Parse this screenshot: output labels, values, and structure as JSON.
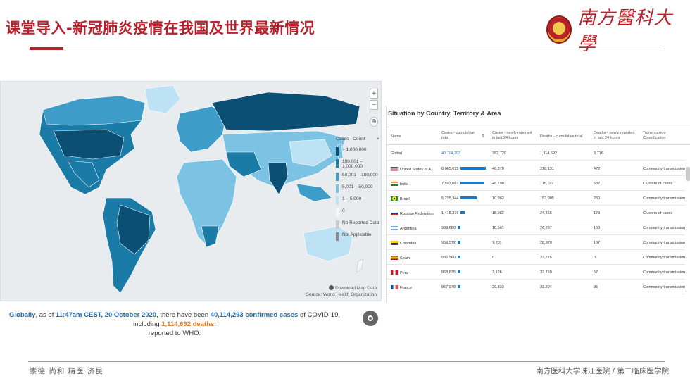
{
  "slide": {
    "title": "课堂导入-新冠肺炎疫情在我国及世界最新情况",
    "logo_text": "南方醫科大學"
  },
  "map": {
    "controls": [
      "+",
      "−",
      "⊕"
    ],
    "legend_title": "Cases - Count",
    "legend_close": "×",
    "legend": [
      {
        "label": "> 1,000,000",
        "color": "#0b4f75"
      },
      {
        "label": "100,001 – 1,000,000",
        "color": "#1a7ba7"
      },
      {
        "label": "50,001 – 100,000",
        "color": "#3e9cc8"
      },
      {
        "label": "5,001 – 50,000",
        "color": "#7cc2e3"
      },
      {
        "label": "1 – 5,000",
        "color": "#bde2f3"
      },
      {
        "label": "0",
        "color": "#f2f7fa"
      },
      {
        "label": "No Reported Data",
        "color": "#c9c9c9"
      },
      {
        "label": "Not Applicable",
        "color": "#8c8c8c"
      }
    ],
    "download_label": "Download Map Data",
    "source_label": "Source: World Health Organization"
  },
  "caption": {
    "lead": "Globally",
    "part1": ", as of ",
    "timestamp": "11:47am CEST, 20 October 2020",
    "part2": ", there have been ",
    "cases": "40,114,293 confirmed cases",
    "part3": " of COVID-19, including ",
    "deaths": "1,114,692 deaths",
    "part4": ",",
    "part5": "reported to WHO."
  },
  "table": {
    "title": "Situation by Country, Territory & Area",
    "headers": {
      "name": "Name",
      "cases_total": "Cases - cumulative total",
      "sort": "⇅",
      "cases_24h": "Cases - newly reported in last 24 hours",
      "deaths_total": "Deaths - cumulative total",
      "deaths_24h": "Deaths - newly reported in last 24 hours",
      "transmission": "Transmission Classification"
    },
    "global": {
      "name": "Global",
      "cases_total": "40,114,293",
      "cases_24h": "382,729",
      "deaths_total": "1,114,692",
      "deaths_24h": "3,716"
    },
    "rows": [
      {
        "name": "United States of A...",
        "flag": "us",
        "cases_total": "8,065,615",
        "bar": 1.0,
        "cases_24h": "46,378",
        "deaths_total": "218,131",
        "deaths_24h": "472",
        "transmission": "Community transmission"
      },
      {
        "name": "India",
        "flag": "in",
        "cases_total": "7,597,063",
        "bar": 0.94,
        "cases_24h": "46,790",
        "deaths_total": "115,197",
        "deaths_24h": "587",
        "transmission": "Clusters of cases"
      },
      {
        "name": "Brazil",
        "flag": "br",
        "cases_total": "5,235,344",
        "bar": 0.65,
        "cases_24h": "10,982",
        "deaths_total": "153,905",
        "deaths_24h": "230",
        "transmission": "Community transmission"
      },
      {
        "name": "Russian Federation",
        "flag": "ru",
        "cases_total": "1,415,316",
        "bar": 0.18,
        "cases_24h": "15,982",
        "deaths_total": "24,366",
        "deaths_24h": "179",
        "transmission": "Clusters of cases"
      },
      {
        "name": "Argentina",
        "flag": "ar",
        "cases_total": "989,680",
        "bar": 0.12,
        "cases_24h": "10,561",
        "deaths_total": "26,267",
        "deaths_24h": "160",
        "transmission": "Community transmission"
      },
      {
        "name": "Colombia",
        "flag": "co",
        "cases_total": "959,572",
        "bar": 0.12,
        "cases_24h": "7,201",
        "deaths_total": "28,970",
        "deaths_24h": "167",
        "transmission": "Community transmission"
      },
      {
        "name": "Spain",
        "flag": "es",
        "cases_total": "936,560",
        "bar": 0.12,
        "cases_24h": "0",
        "deaths_total": "33,775",
        "deaths_24h": "0",
        "transmission": "Community transmission"
      },
      {
        "name": "Peru",
        "flag": "pe",
        "cases_total": "868,675",
        "bar": 0.11,
        "cases_24h": "3,126",
        "deaths_total": "33,759",
        "deaths_24h": "57",
        "transmission": "Community transmission"
      },
      {
        "name": "France",
        "flag": "fr",
        "cases_total": "867,978",
        "bar": 0.11,
        "cases_24h": "29,833",
        "deaths_total": "33,204",
        "deaths_24h": "85",
        "transmission": "Community transmission"
      }
    ]
  },
  "footer": {
    "left": "崇德  尚和  精医  济民",
    "right": "南方医科大学珠江医院 / 第二临床医学院"
  }
}
